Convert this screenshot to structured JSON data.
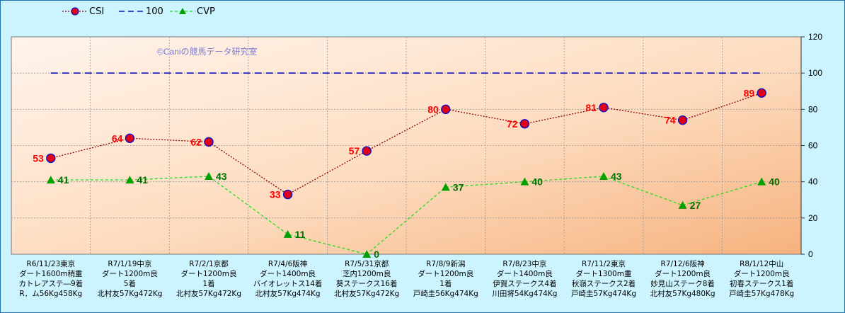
{
  "chart_data": {
    "type": "line",
    "watermark": "©Caniの競馬データ研究室",
    "ylim": [
      0,
      120
    ],
    "yticks": [
      "0",
      "20",
      "40",
      "60",
      "80",
      "100",
      "120"
    ],
    "grid": true,
    "legend_position": "top-left",
    "categories": [
      [
        "R6/11/23東京",
        "ダート1600m稍重",
        "カトレアステ―9着",
        "R．ム56Kg458Kg"
      ],
      [
        "R7/1/19中京",
        "ダート1200m良",
        "5着",
        "北村友57Kg472Kg"
      ],
      [
        "R7/2/1京都",
        "ダート1200m良",
        "1着",
        "北村友57Kg472Kg"
      ],
      [
        "R7/4/6阪神",
        "ダート1400m良",
        "バイオレットス14着",
        "北村友57Kg474Kg"
      ],
      [
        "R7/5/31京都",
        "芝内1200m良",
        "葵ステークス16着",
        "北村友57Kg472Kg"
      ],
      [
        "R7/8/9新潟",
        "ダート1200m良",
        "1着",
        "戸崎圭56Kg474Kg"
      ],
      [
        "R7/8/23中京",
        "ダート1400m良",
        "伊賀ステークス4着",
        "川田将54Kg474Kg"
      ],
      [
        "R7/11/2東京",
        "ダート1300m重",
        "秋嶺ステークス2着",
        "戸崎圭57Kg474Kg"
      ],
      [
        "R7/12/6阪神",
        "ダート1200m良",
        "妙見山ステーク8着",
        "北村友57Kg480Kg"
      ],
      [
        "R8/1/12中山",
        "ダート1200m良",
        "初春ステークス1着",
        "戸崎圭57Kg478Kg"
      ]
    ],
    "series": [
      {
        "name": "CSI",
        "values": [
          53,
          64,
          62,
          33,
          57,
          80,
          72,
          81,
          74,
          89
        ],
        "color": "#8b0000",
        "marker_color": "#e0001a",
        "label_color": "#ff0000",
        "style": "dotted-marker-circle"
      },
      {
        "name": "100",
        "values": [
          100,
          100,
          100,
          100,
          100,
          100,
          100,
          100,
          100,
          100
        ],
        "color": "#1010c0",
        "style": "dashed"
      },
      {
        "name": "CVP",
        "values": [
          41,
          41,
          43,
          11,
          0,
          37,
          40,
          43,
          27,
          40
        ],
        "color": "#22dd22",
        "marker_color": "#00a000",
        "label_color": "#007000",
        "style": "dashed-marker-triangle"
      }
    ]
  }
}
